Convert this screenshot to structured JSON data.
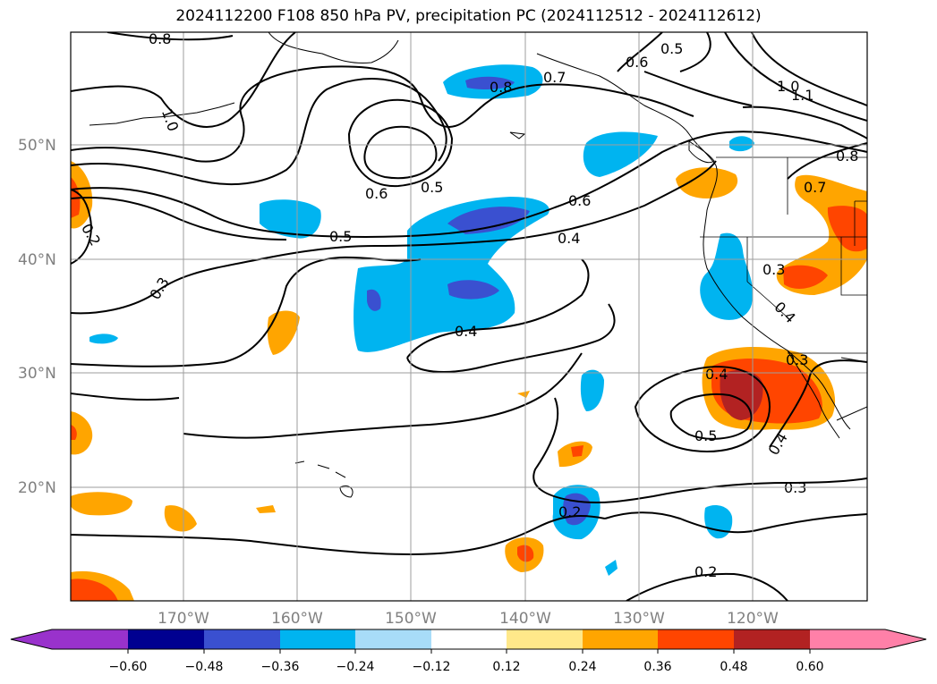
{
  "title": "2024112200 F108 850 hPa PV, precipitation PC (2024112512 - 2024112612)",
  "map": {
    "lat_labels": [
      "50°N",
      "40°N",
      "30°N",
      "20°N"
    ],
    "lon_labels": [
      "170°W",
      "160°W",
      "150°W",
      "140°W",
      "130°W",
      "120°W"
    ],
    "contour_labels": [
      "0.8",
      "0.8",
      "0.7",
      "0.6",
      "0.5",
      "1.0",
      "1.0",
      "1.1",
      "0.8",
      "0.5",
      "0.6",
      "0.5",
      "0.6",
      "0.4",
      "0.2",
      "0.3",
      "0.3",
      "0.4",
      "0.4",
      "0.4",
      "0.5",
      "0.4",
      "0.3",
      "0.2",
      "0.2",
      "0.3",
      "0.7"
    ]
  },
  "colorbar": {
    "ticks": [
      "−0.60",
      "−0.48",
      "−0.36",
      "−0.24",
      "−0.12",
      "0.12",
      "0.24",
      "0.36",
      "0.48",
      "0.60"
    ],
    "colors": [
      "#9932cc",
      "#000090",
      "#3a50d0",
      "#00b4f0",
      "#a8dcf8",
      "#ffffff",
      "#ffe88a",
      "#ffa500",
      "#ff4500",
      "#b22222",
      "#ff80a8"
    ]
  }
}
